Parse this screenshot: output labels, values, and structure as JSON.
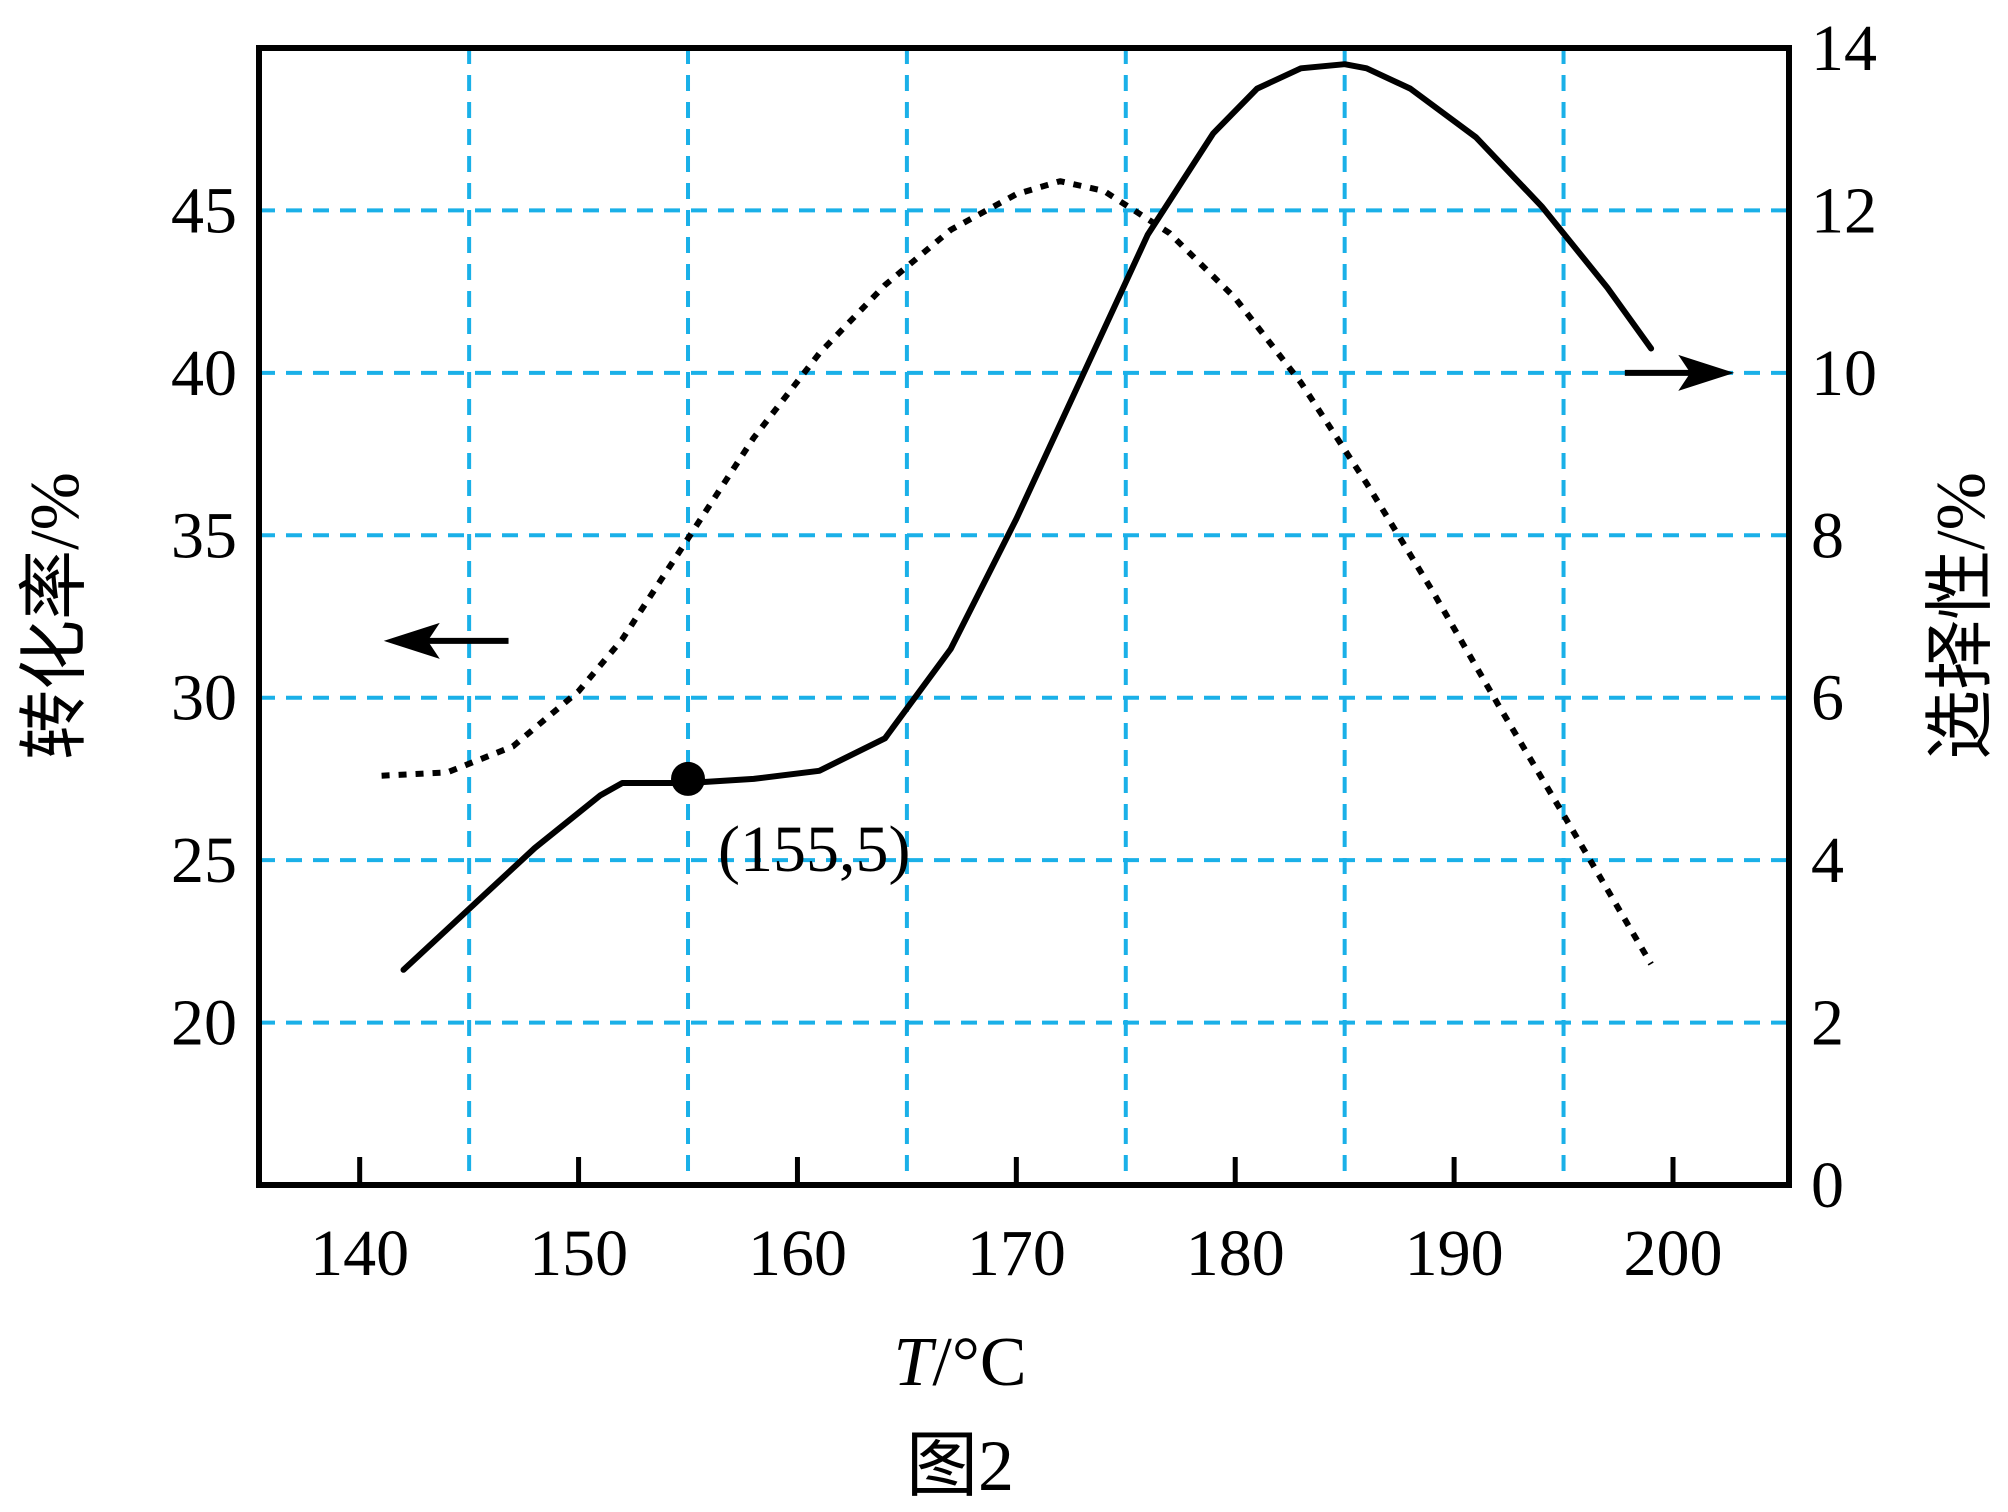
{
  "chart_data": {
    "type": "line",
    "xlabel_italic": "T",
    "xlabel_rest": "/°C",
    "ylabel_left": "转化率/%",
    "ylabel_right": "选择性/%",
    "caption": "图2",
    "x_ticks": [
      "140",
      "150",
      "160",
      "170",
      "180",
      "190",
      "200"
    ],
    "x_tick_values": [
      140,
      150,
      160,
      170,
      180,
      190,
      200
    ],
    "xlim": [
      135.4,
      205.3
    ],
    "y_left_ticks": [
      "20",
      "25",
      "30",
      "35",
      "40",
      "45"
    ],
    "y_left_tick_values": [
      20,
      25,
      30,
      35,
      40,
      45
    ],
    "ylim_left": [
      15,
      50
    ],
    "y_right_ticks": [
      "0",
      "2",
      "4",
      "6",
      "8",
      "10",
      "12",
      "14"
    ],
    "y_right_tick_values": [
      0,
      2,
      4,
      6,
      8,
      10,
      12,
      14
    ],
    "ylim_right": [
      0,
      14
    ],
    "grid_x": [
      145,
      155,
      165,
      175,
      185,
      195
    ],
    "grid_y_left": [
      20,
      25,
      30,
      35,
      40,
      45
    ],
    "grid_color": "#1ab0e8",
    "series": [
      {
        "axis": "left",
        "style": "dotted",
        "x": [
          141,
          144,
          147,
          150,
          152,
          155,
          158,
          161,
          164,
          167,
          170,
          172,
          174,
          177,
          180,
          183,
          186,
          189,
          192,
          195,
          197,
          199
        ],
        "values": [
          27.6,
          27.7,
          28.5,
          30.2,
          31.8,
          34.9,
          38.0,
          40.6,
          42.7,
          44.4,
          45.5,
          45.9,
          45.6,
          44.3,
          42.3,
          39.7,
          36.6,
          33.3,
          29.8,
          26.4,
          24.1,
          21.8
        ]
      },
      {
        "axis": "right",
        "style": "solid",
        "x": [
          142,
          145,
          148,
          151,
          152,
          154,
          155,
          158,
          161,
          164,
          167,
          170,
          173,
          176,
          179,
          181,
          183,
          185,
          186,
          188,
          191,
          194,
          197,
          199
        ],
        "values": [
          2.65,
          3.4,
          4.15,
          4.8,
          4.95,
          4.95,
          4.95,
          5.0,
          5.1,
          5.5,
          6.6,
          8.2,
          9.95,
          11.7,
          12.95,
          13.5,
          13.75,
          13.8,
          13.75,
          13.5,
          12.9,
          12.05,
          11.05,
          10.3
        ]
      }
    ],
    "marker": {
      "x": 155,
      "y": 5,
      "axis": "right",
      "label": "(155,5)"
    },
    "arrows": [
      {
        "direction": "left",
        "points_to_axis": "left",
        "from_x": 146.8,
        "to_x": 141.1,
        "y_right": 6.7
      },
      {
        "direction": "right",
        "points_to_axis": "right",
        "from_x": 197.8,
        "to_x": 202.8,
        "y_right": 10.0
      }
    ]
  }
}
